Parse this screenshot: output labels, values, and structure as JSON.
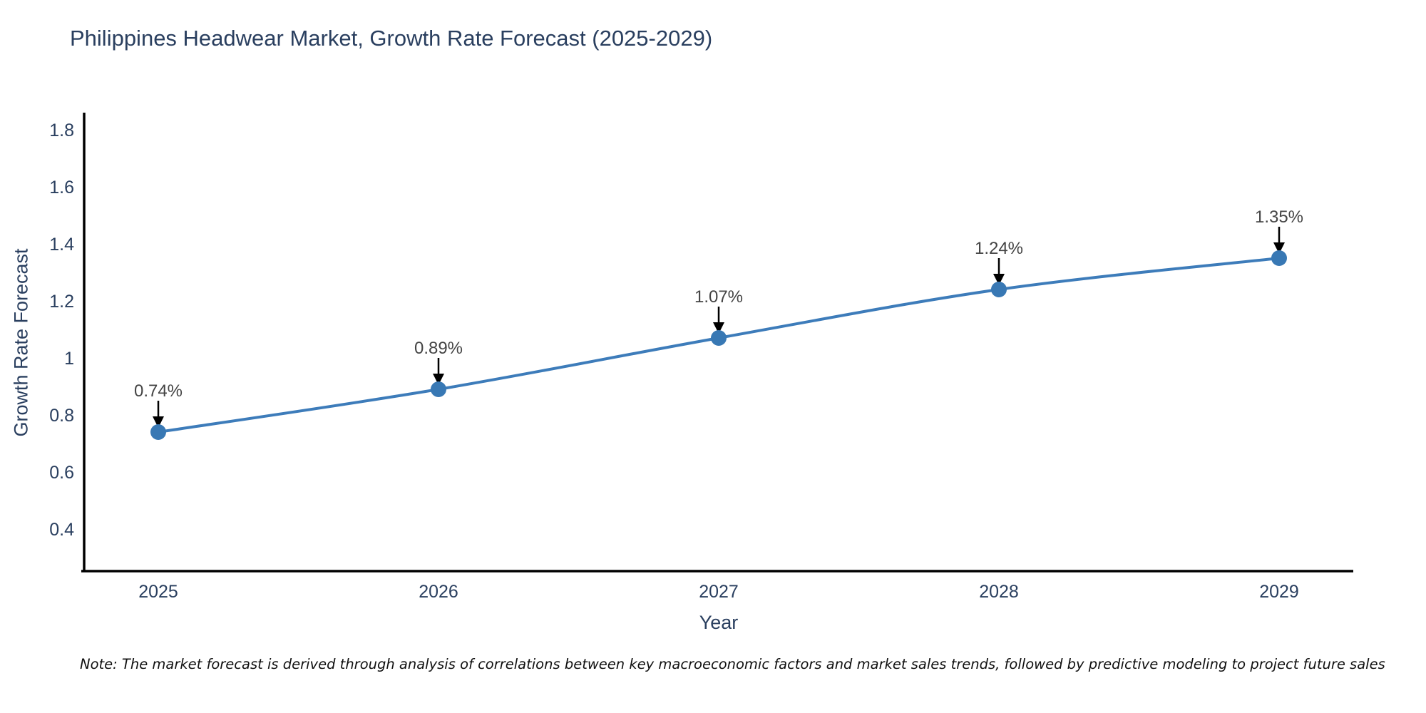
{
  "chart_data": {
    "type": "line",
    "title": "Philippines Headwear Market, Growth Rate Forecast (2025-2029)",
    "xlabel": "Year",
    "ylabel": "Growth Rate Forecast",
    "categories": [
      "2025",
      "2026",
      "2027",
      "2028",
      "2029"
    ],
    "x": [
      2025,
      2026,
      2027,
      2028,
      2029
    ],
    "values": [
      0.74,
      0.89,
      1.07,
      1.24,
      1.35
    ],
    "annotations": [
      "0.74%",
      "0.89%",
      "1.07%",
      "1.24%",
      "1.35%"
    ],
    "ylim": [
      0.255,
      1.855
    ],
    "yticks": [
      0.4,
      0.6,
      0.8,
      1,
      1.2,
      1.4,
      1.6,
      1.8
    ],
    "grid": false,
    "legend": "none",
    "line_shape": "spline",
    "colors": {
      "line": "#3d7cba",
      "marker": "#3878b4",
      "arrow": "#000000",
      "axis": "#000000",
      "tick_text": "#2a3f5f",
      "annotation_text": "#444444",
      "title_text": "#2a3f5f"
    }
  },
  "footnote": {
    "text": "Note: The market forecast is derived through analysis of correlations between key macroeconomic factors and market sales trends, followed by predictive modeling to project future sales"
  }
}
